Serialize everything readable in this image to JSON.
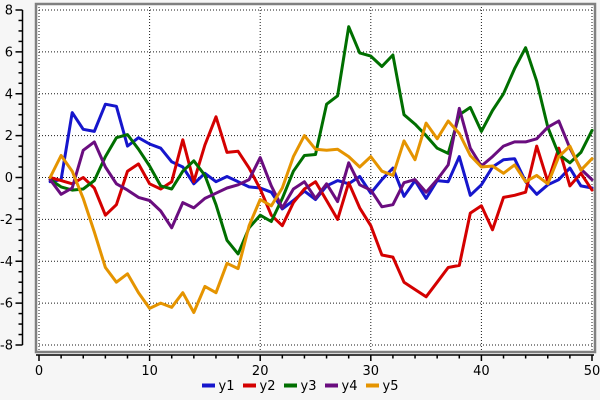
{
  "chart_data": {
    "type": "line",
    "title": "",
    "xlabel": "",
    "ylabel": "",
    "xlim": [
      0,
      50
    ],
    "ylim": [
      -8,
      8
    ],
    "x_major_ticks": [
      0,
      10,
      20,
      30,
      40,
      50
    ],
    "x_minor_step": 2,
    "y_major_ticks": [
      -8,
      -6,
      -4,
      -2,
      0,
      2,
      4,
      6,
      8
    ],
    "y_minor_step": 0.5,
    "grid": "dotted",
    "legend_position": "bottom-center",
    "x": [
      1,
      2,
      3,
      4,
      5,
      6,
      7,
      8,
      9,
      10,
      11,
      12,
      13,
      14,
      15,
      16,
      17,
      18,
      19,
      20,
      21,
      22,
      23,
      24,
      25,
      26,
      27,
      28,
      29,
      30,
      31,
      32,
      33,
      34,
      35,
      36,
      37,
      38,
      39,
      40,
      41,
      42,
      43,
      44,
      45,
      46,
      47,
      48,
      49,
      50
    ],
    "series": [
      {
        "name": "y1",
        "color": "#1616cc",
        "values": [
          -0.2,
          -0.1,
          3.1,
          2.3,
          2.2,
          3.5,
          3.4,
          1.5,
          1.9,
          1.6,
          1.4,
          0.75,
          0.5,
          -0.3,
          0.2,
          -0.2,
          0.05,
          -0.2,
          -0.45,
          -0.5,
          -0.7,
          -1.5,
          -1.1,
          -0.65,
          -1.05,
          -0.4,
          -0.15,
          -0.3,
          0.05,
          -0.75,
          -0.1,
          0.45,
          -0.9,
          -0.15,
          -1.0,
          -0.15,
          -0.2,
          1.0,
          -0.85,
          -0.35,
          0.5,
          0.85,
          0.9,
          -0.2,
          -0.8,
          -0.35,
          -0.1,
          0.45,
          -0.4,
          -0.5
        ]
      },
      {
        "name": "y2",
        "color": "#d40000",
        "values": [
          0.0,
          -0.15,
          -0.3,
          0.0,
          -0.5,
          -1.8,
          -1.3,
          0.3,
          0.65,
          -0.3,
          -0.55,
          -0.2,
          1.8,
          -0.2,
          1.55,
          2.9,
          1.2,
          1.25,
          0.45,
          -0.55,
          -1.8,
          -2.3,
          -1.2,
          -0.55,
          -0.2,
          -1.1,
          -2.0,
          -0.25,
          -1.45,
          -2.3,
          -3.7,
          -3.8,
          -5.0,
          -5.35,
          -5.7,
          -5.0,
          -4.3,
          -4.2,
          -1.7,
          -1.35,
          -2.5,
          -0.95,
          -0.85,
          -0.7,
          1.5,
          -0.2,
          1.4,
          -0.4,
          0.2,
          -0.6
        ]
      },
      {
        "name": "y3",
        "color": "#006f00",
        "values": [
          -0.1,
          -0.45,
          -0.6,
          -0.55,
          -0.15,
          1.0,
          1.9,
          2.05,
          1.35,
          0.55,
          -0.4,
          -0.55,
          0.3,
          0.8,
          0.1,
          -1.3,
          -3.0,
          -3.65,
          -2.4,
          -1.8,
          -2.1,
          -1.0,
          0.3,
          1.05,
          1.1,
          3.5,
          3.9,
          7.2,
          5.95,
          5.8,
          5.3,
          5.85,
          3.0,
          2.55,
          2.0,
          1.4,
          1.15,
          3.0,
          3.35,
          2.2,
          3.2,
          4.0,
          5.2,
          6.2,
          4.6,
          2.4,
          1.1,
          0.7,
          1.2,
          2.25
        ]
      },
      {
        "name": "y4",
        "color": "#6a0d7f",
        "values": [
          -0.1,
          -0.8,
          -0.5,
          1.3,
          1.7,
          0.5,
          -0.3,
          -0.6,
          -0.95,
          -1.1,
          -1.6,
          -2.4,
          -1.2,
          -1.45,
          -1.0,
          -0.75,
          -0.5,
          -0.35,
          -0.1,
          0.95,
          -0.4,
          -1.45,
          -0.55,
          -0.2,
          -1.0,
          -0.3,
          -1.15,
          0.7,
          -0.35,
          -0.6,
          -1.4,
          -1.3,
          -0.25,
          -0.1,
          -0.7,
          -0.1,
          0.6,
          3.3,
          1.4,
          0.55,
          1.0,
          1.5,
          1.7,
          1.7,
          1.85,
          2.4,
          2.7,
          1.4,
          0.4,
          -0.1
        ]
      },
      {
        "name": "y5",
        "color": "#e59400",
        "values": [
          0.0,
          1.05,
          0.3,
          -1.0,
          -2.6,
          -4.3,
          -5.0,
          -4.6,
          -5.5,
          -6.25,
          -6.0,
          -6.2,
          -5.5,
          -6.45,
          -5.2,
          -5.5,
          -4.1,
          -4.35,
          -2.3,
          -1.05,
          -1.35,
          -0.5,
          1.0,
          2.0,
          1.35,
          1.3,
          1.35,
          1.0,
          0.5,
          1.0,
          0.3,
          0.1,
          1.75,
          0.85,
          2.6,
          1.85,
          2.7,
          2.1,
          1.05,
          0.5,
          0.55,
          0.2,
          0.6,
          -0.2,
          0.1,
          -0.3,
          1.0,
          1.5,
          0.35,
          0.9
        ]
      }
    ]
  },
  "colors": {
    "background": "#f6f6f6",
    "plot_background": "#ffffff",
    "plot_border": "#808080",
    "grid": "#1a1a1a",
    "axis": "#000000",
    "tick_label": "#000000"
  }
}
